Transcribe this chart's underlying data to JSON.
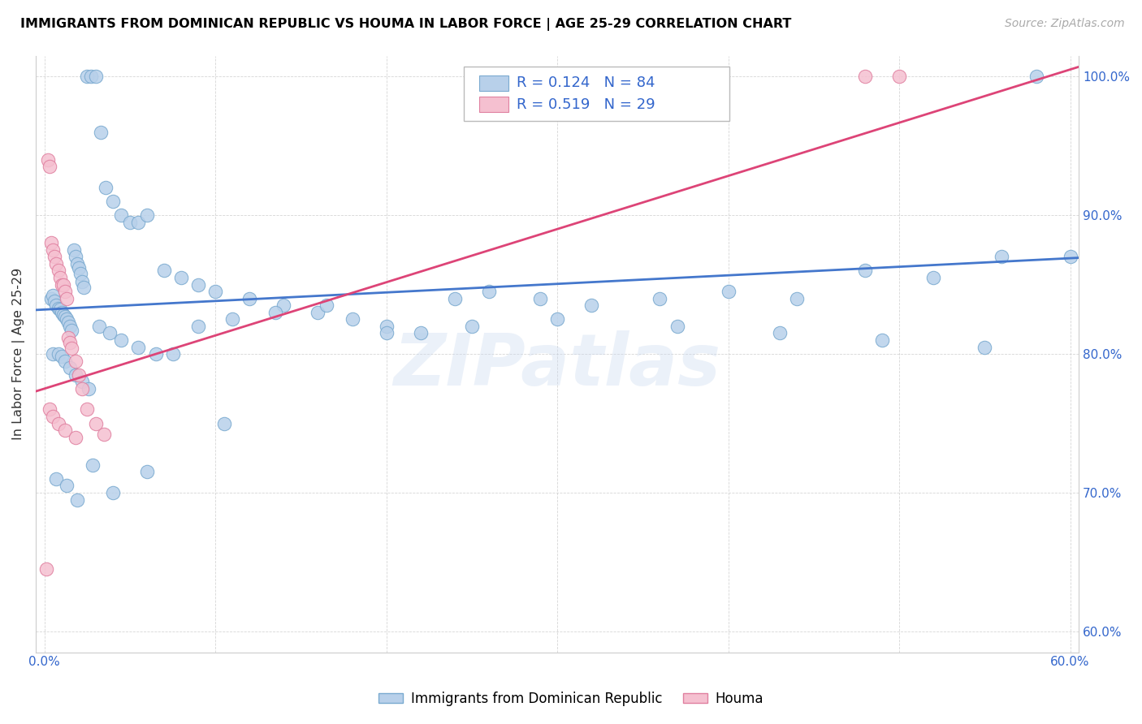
{
  "title": "IMMIGRANTS FROM DOMINICAN REPUBLIC VS HOUMA IN LABOR FORCE | AGE 25-29 CORRELATION CHART",
  "source": "Source: ZipAtlas.com",
  "ylabel": "In Labor Force | Age 25-29",
  "xlim": [
    -0.005,
    0.605
  ],
  "ylim": [
    0.585,
    1.015
  ],
  "xticks": [
    0.0,
    0.1,
    0.2,
    0.3,
    0.4,
    0.5,
    0.6
  ],
  "xticklabels": [
    "0.0%",
    "",
    "",
    "",
    "",
    "",
    "60.0%"
  ],
  "yticks": [
    0.6,
    0.7,
    0.8,
    0.9,
    1.0
  ],
  "yticklabels_right": [
    "60.0%",
    "70.0%",
    "80.0%",
    "90.0%",
    "100.0%"
  ],
  "blue_face": "#b8d0ea",
  "blue_edge": "#7aaad0",
  "pink_face": "#f5c0d0",
  "pink_edge": "#e080a0",
  "trend_blue": "#4477cc",
  "trend_pink": "#dd4477",
  "legend_text_color": "#3366cc",
  "watermark": "ZIPatlas",
  "watermark_color": "#c8d8ee",
  "legend1_label": "Immigrants from Dominican Republic",
  "legend2_label": "Houma",
  "blue_x": [
    0.004,
    0.005,
    0.006,
    0.007,
    0.008,
    0.009,
    0.01,
    0.011,
    0.012,
    0.013,
    0.014,
    0.015,
    0.016,
    0.017,
    0.018,
    0.019,
    0.02,
    0.021,
    0.022,
    0.023,
    0.025,
    0.027,
    0.03,
    0.033,
    0.036,
    0.04,
    0.045,
    0.05,
    0.055,
    0.06,
    0.07,
    0.08,
    0.09,
    0.1,
    0.12,
    0.14,
    0.16,
    0.18,
    0.2,
    0.22,
    0.24,
    0.26,
    0.29,
    0.32,
    0.36,
    0.4,
    0.44,
    0.48,
    0.52,
    0.56,
    0.005,
    0.008,
    0.01,
    0.012,
    0.015,
    0.018,
    0.022,
    0.026,
    0.032,
    0.038,
    0.045,
    0.055,
    0.065,
    0.075,
    0.09,
    0.11,
    0.135,
    0.165,
    0.2,
    0.25,
    0.3,
    0.37,
    0.43,
    0.49,
    0.55,
    0.6,
    0.007,
    0.013,
    0.019,
    0.028,
    0.04,
    0.06,
    0.105,
    0.58
  ],
  "blue_y": [
    0.84,
    0.842,
    0.838,
    0.835,
    0.833,
    0.832,
    0.83,
    0.828,
    0.827,
    0.825,
    0.823,
    0.82,
    0.817,
    0.875,
    0.87,
    0.865,
    0.862,
    0.858,
    0.852,
    0.848,
    1.0,
    1.0,
    1.0,
    0.96,
    0.92,
    0.91,
    0.9,
    0.895,
    0.895,
    0.9,
    0.86,
    0.855,
    0.85,
    0.845,
    0.84,
    0.835,
    0.83,
    0.825,
    0.82,
    0.815,
    0.84,
    0.845,
    0.84,
    0.835,
    0.84,
    0.845,
    0.84,
    0.86,
    0.855,
    0.87,
    0.8,
    0.8,
    0.798,
    0.795,
    0.79,
    0.785,
    0.78,
    0.775,
    0.82,
    0.815,
    0.81,
    0.805,
    0.8,
    0.8,
    0.82,
    0.825,
    0.83,
    0.835,
    0.815,
    0.82,
    0.825,
    0.82,
    0.815,
    0.81,
    0.805,
    0.87,
    0.71,
    0.705,
    0.695,
    0.72,
    0.7,
    0.715,
    0.75,
    1.0
  ],
  "pink_x": [
    0.002,
    0.003,
    0.004,
    0.005,
    0.006,
    0.007,
    0.008,
    0.009,
    0.01,
    0.011,
    0.012,
    0.013,
    0.014,
    0.015,
    0.016,
    0.018,
    0.02,
    0.022,
    0.025,
    0.03,
    0.035,
    0.001,
    0.003,
    0.005,
    0.008,
    0.012,
    0.018,
    0.48,
    0.5
  ],
  "pink_y": [
    0.94,
    0.935,
    0.88,
    0.875,
    0.87,
    0.865,
    0.86,
    0.855,
    0.85,
    0.85,
    0.845,
    0.84,
    0.812,
    0.808,
    0.804,
    0.795,
    0.785,
    0.775,
    0.76,
    0.75,
    0.742,
    0.645,
    0.76,
    0.755,
    0.75,
    0.745,
    0.74,
    1.0,
    1.0
  ]
}
